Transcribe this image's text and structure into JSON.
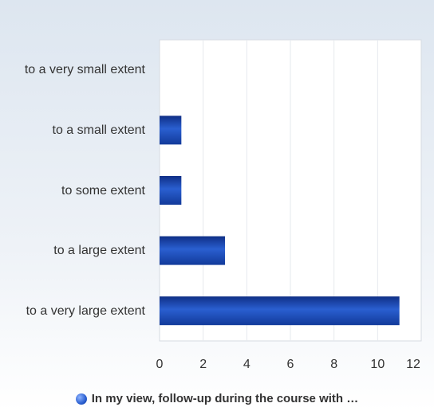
{
  "chart_data": {
    "type": "bar",
    "orientation": "horizontal",
    "categories": [
      "to a very small extent",
      "to a small extent",
      "to some extent",
      "to a large extent",
      "to a very large extent"
    ],
    "series": [
      {
        "name": "In my view, follow-up during the course with …",
        "color": "#2a5fd0",
        "values": [
          0,
          1,
          1,
          3,
          11
        ]
      }
    ],
    "xlim": [
      0,
      12
    ],
    "xticks": [
      0,
      2,
      4,
      6,
      8,
      10,
      12
    ],
    "grid": true
  }
}
